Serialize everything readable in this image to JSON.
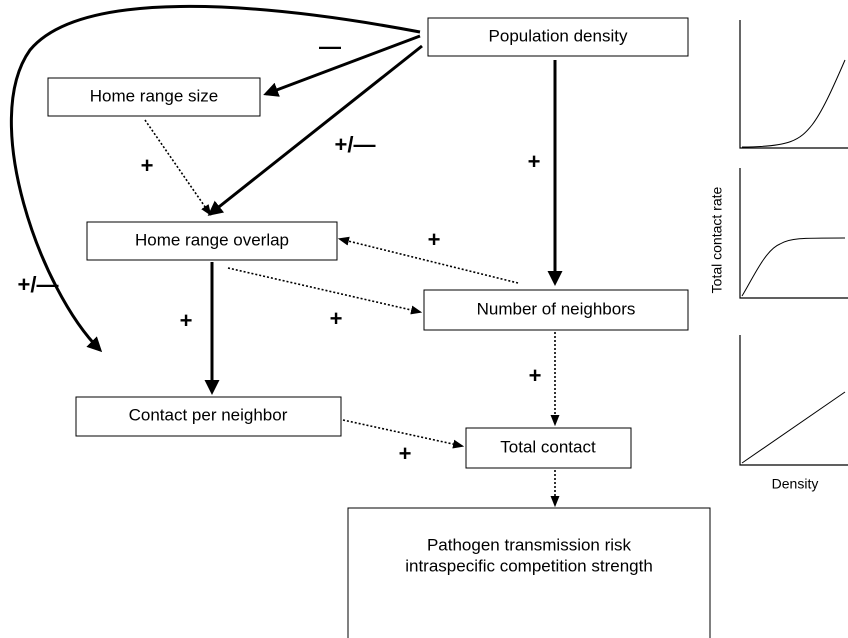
{
  "nodes": [
    {
      "label": "Population density"
    },
    {
      "label": "Home range size"
    },
    {
      "label": "Home range overlap"
    },
    {
      "label": "Number of neighbors"
    },
    {
      "label": "Contact per neighbor"
    },
    {
      "label": "Total contact"
    },
    {
      "label": [
        "Pathogen transmission risk",
        "intraspecific competition strength"
      ]
    }
  ],
  "edges": [
    {
      "label": "—"
    },
    {
      "label": "+/—"
    },
    {
      "label": "+"
    },
    {
      "label": "+/—"
    },
    {
      "label": "+"
    },
    {
      "label": "+"
    },
    {
      "label": "+"
    },
    {
      "label": "+"
    },
    {
      "label": "+"
    },
    {
      "label": "+"
    },
    {
      "label": "+"
    }
  ],
  "side_panel": {
    "y_label": "Total contact rate",
    "x_label": "Density"
  }
}
